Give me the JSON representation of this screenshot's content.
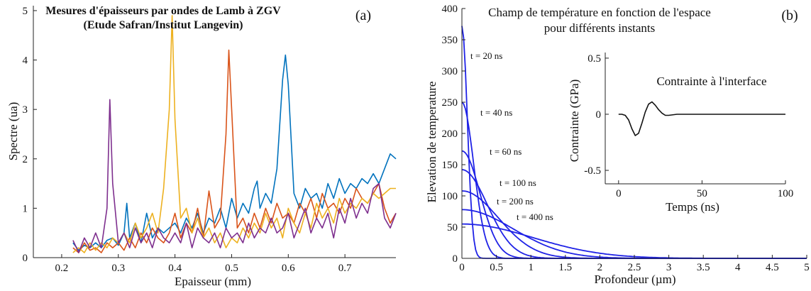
{
  "chart_data": [
    {
      "type": "line",
      "panel_label": "(a)",
      "title": "Mesures d'épaisseurs par ondes de Lamb à ZGV",
      "subtitle": "(Etude Safran/Institut Langevin)",
      "xlabel": "Epaisseur (mm)",
      "ylabel": "Spectre (ua)",
      "xlim": [
        0.15,
        0.79
      ],
      "ylim": [
        0,
        5.1
      ],
      "xticks": [
        "0.2",
        "0.3",
        "0.4",
        "0.5",
        "0.6",
        "0.7"
      ],
      "yticks": [
        "0",
        "1",
        "2",
        "3",
        "4",
        "5"
      ],
      "series": [
        {
          "color": "#0072BD",
          "x": [
            0.22,
            0.23,
            0.24,
            0.25,
            0.26,
            0.27,
            0.28,
            0.29,
            0.3,
            0.31,
            0.315,
            0.32,
            0.33,
            0.34,
            0.35,
            0.36,
            0.37,
            0.38,
            0.39,
            0.4,
            0.41,
            0.42,
            0.43,
            0.44,
            0.45,
            0.46,
            0.47,
            0.48,
            0.49,
            0.5,
            0.51,
            0.52,
            0.53,
            0.54,
            0.545,
            0.55,
            0.56,
            0.57,
            0.58,
            0.59,
            0.595,
            0.6,
            0.61,
            0.62,
            0.63,
            0.64,
            0.65,
            0.66,
            0.67,
            0.68,
            0.69,
            0.7,
            0.71,
            0.72,
            0.73,
            0.74,
            0.75,
            0.76,
            0.77,
            0.78,
            0.79
          ],
          "y": [
            0.3,
            0.15,
            0.25,
            0.2,
            0.3,
            0.2,
            0.35,
            0.4,
            0.25,
            0.5,
            1.1,
            0.4,
            0.7,
            0.3,
            0.9,
            0.4,
            0.6,
            0.5,
            0.6,
            0.7,
            0.5,
            0.8,
            0.6,
            0.9,
            0.5,
            0.8,
            0.7,
            1.0,
            0.6,
            1.2,
            0.8,
            1.1,
            0.9,
            1.4,
            1.55,
            1.0,
            1.3,
            1.1,
            1.8,
            3.6,
            4.1,
            3.5,
            1.3,
            1.0,
            1.4,
            1.2,
            1.3,
            1.0,
            1.5,
            1.2,
            1.6,
            1.3,
            1.5,
            1.4,
            1.6,
            1.5,
            1.7,
            1.5,
            1.8,
            2.1,
            2.0
          ]
        },
        {
          "color": "#D95319",
          "x": [
            0.22,
            0.23,
            0.24,
            0.25,
            0.26,
            0.27,
            0.28,
            0.29,
            0.3,
            0.31,
            0.32,
            0.33,
            0.34,
            0.35,
            0.36,
            0.37,
            0.38,
            0.39,
            0.4,
            0.41,
            0.42,
            0.43,
            0.44,
            0.45,
            0.46,
            0.47,
            0.48,
            0.49,
            0.495,
            0.5,
            0.51,
            0.52,
            0.53,
            0.54,
            0.55,
            0.56,
            0.57,
            0.58,
            0.59,
            0.6,
            0.61,
            0.62,
            0.63,
            0.64,
            0.65,
            0.66,
            0.67,
            0.68,
            0.69,
            0.7,
            0.71,
            0.72,
            0.73,
            0.74,
            0.75,
            0.76,
            0.77,
            0.78,
            0.79
          ],
          "y": [
            0.2,
            0.1,
            0.3,
            0.15,
            0.2,
            0.1,
            0.3,
            0.2,
            0.3,
            0.15,
            0.4,
            0.2,
            0.5,
            0.3,
            0.6,
            0.4,
            0.3,
            0.5,
            0.9,
            0.4,
            0.7,
            0.5,
            1.0,
            0.4,
            1.35,
            0.6,
            0.8,
            2.5,
            4.2,
            3.0,
            0.6,
            0.8,
            0.5,
            0.9,
            0.6,
            1.0,
            0.7,
            1.1,
            0.8,
            0.9,
            0.7,
            1.1,
            0.9,
            1.2,
            0.8,
            1.3,
            1.0,
            1.1,
            0.9,
            1.2,
            1.0,
            1.4,
            1.2,
            1.1,
            1.3,
            1.5,
            1.0,
            0.7,
            0.9
          ]
        },
        {
          "color": "#EDB120",
          "x": [
            0.22,
            0.23,
            0.24,
            0.25,
            0.26,
            0.27,
            0.28,
            0.29,
            0.3,
            0.31,
            0.32,
            0.33,
            0.34,
            0.35,
            0.36,
            0.37,
            0.38,
            0.39,
            0.395,
            0.4,
            0.41,
            0.42,
            0.43,
            0.44,
            0.45,
            0.46,
            0.47,
            0.48,
            0.49,
            0.5,
            0.51,
            0.52,
            0.53,
            0.54,
            0.55,
            0.56,
            0.57,
            0.58,
            0.59,
            0.6,
            0.61,
            0.62,
            0.63,
            0.64,
            0.65,
            0.66,
            0.67,
            0.68,
            0.69,
            0.7,
            0.71,
            0.72,
            0.73,
            0.74,
            0.75,
            0.76,
            0.77,
            0.78,
            0.79
          ],
          "y": [
            0.1,
            0.2,
            0.1,
            0.3,
            0.15,
            0.3,
            0.2,
            0.4,
            0.3,
            0.5,
            0.3,
            0.7,
            0.4,
            0.6,
            0.9,
            0.5,
            1.4,
            3.0,
            4.9,
            2.8,
            0.8,
            1.0,
            0.5,
            0.8,
            0.4,
            0.6,
            0.3,
            0.5,
            0.2,
            0.4,
            0.3,
            0.6,
            0.4,
            0.7,
            0.5,
            0.9,
            0.6,
            0.8,
            0.4,
            1.0,
            0.7,
            0.5,
            0.9,
            0.6,
            1.1,
            0.8,
            1.0,
            0.7,
            1.2,
            0.9,
            1.1,
            1.0,
            1.2,
            1.1,
            1.3,
            1.2,
            1.3,
            1.4,
            1.4
          ]
        },
        {
          "color": "#7E2F8E",
          "x": [
            0.22,
            0.23,
            0.24,
            0.25,
            0.26,
            0.27,
            0.28,
            0.285,
            0.29,
            0.3,
            0.31,
            0.32,
            0.33,
            0.34,
            0.35,
            0.36,
            0.37,
            0.38,
            0.39,
            0.4,
            0.41,
            0.42,
            0.43,
            0.44,
            0.45,
            0.46,
            0.47,
            0.48,
            0.49,
            0.5,
            0.51,
            0.52,
            0.53,
            0.54,
            0.55,
            0.56,
            0.57,
            0.58,
            0.59,
            0.6,
            0.61,
            0.62,
            0.63,
            0.64,
            0.65,
            0.66,
            0.67,
            0.68,
            0.69,
            0.7,
            0.71,
            0.72,
            0.73,
            0.74,
            0.75,
            0.76,
            0.77,
            0.78,
            0.79
          ],
          "y": [
            0.35,
            0.1,
            0.4,
            0.2,
            0.5,
            0.2,
            1.0,
            3.2,
            1.5,
            0.3,
            0.5,
            0.2,
            0.6,
            0.3,
            0.5,
            0.2,
            0.6,
            0.4,
            0.3,
            0.5,
            0.3,
            0.7,
            0.2,
            0.6,
            0.4,
            0.3,
            0.5,
            0.2,
            0.6,
            0.4,
            0.5,
            0.3,
            0.7,
            0.4,
            0.6,
            0.5,
            0.8,
            0.5,
            0.6,
            0.9,
            0.4,
            0.7,
            1.0,
            0.5,
            0.8,
            0.6,
            0.9,
            0.4,
            1.0,
            0.7,
            1.2,
            0.8,
            1.1,
            0.9,
            1.4,
            1.5,
            0.8,
            0.6,
            0.9
          ]
        }
      ]
    },
    {
      "type": "line",
      "panel_label": "(b)",
      "title": "Champ de température en fonction de l'espace",
      "subtitle": "pour différents instants",
      "xlabel": "Profondeur (µm)",
      "ylabel": "Elevation de temperature",
      "xlim": [
        0,
        5
      ],
      "ylim": [
        0,
        400
      ],
      "xticks": [
        "0",
        "0.5",
        "1",
        "1.5",
        "2",
        "2.5",
        "3",
        "3.5",
        "4",
        "4.5",
        "5"
      ],
      "yticks": [
        "0",
        "50",
        "100",
        "150",
        "200",
        "250",
        "300",
        "350",
        "400"
      ],
      "line_color": "#1F22E6",
      "series": [
        {
          "label": "t = 20 ns",
          "peak": 372,
          "decay_um": 0.11
        },
        {
          "label": "t = 40 ns",
          "peak": 250,
          "decay_um": 0.24
        },
        {
          "label": "t = 60 ns",
          "peak": 172,
          "decay_um": 0.37
        },
        {
          "label": "t = 100 ns",
          "peak": 142,
          "decay_um": 0.52
        },
        {
          "label": "t = 200 ns",
          "peak": 108,
          "decay_um": 0.74
        },
        {
          "label": "t = 400 ns",
          "peak": 78,
          "decay_um": 1.05
        },
        {
          "label": "",
          "peak": 55,
          "decay_um": 1.45
        }
      ],
      "inset": {
        "title": "Contrainte à l'interface",
        "xlabel": "Temps (ns)",
        "ylabel": "Contrainte (GPa)",
        "xlim": [
          -8,
          100
        ],
        "ylim": [
          -0.62,
          0.55
        ],
        "xticks": [
          "0",
          "50",
          "100"
        ],
        "yticks": [
          "-0.5",
          "0",
          "0.5"
        ],
        "line_color": "#111111",
        "x": [
          0,
          2,
          4,
          6,
          8,
          10,
          12,
          14,
          16,
          18,
          20,
          22,
          24,
          26,
          28,
          30,
          35,
          40,
          50,
          60,
          70,
          80,
          90,
          100
        ],
        "y": [
          0,
          0,
          -0.01,
          -0.05,
          -0.13,
          -0.19,
          -0.17,
          -0.08,
          0.02,
          0.09,
          0.11,
          0.08,
          0.04,
          0.01,
          -0.01,
          -0.01,
          0,
          0,
          0,
          0,
          0,
          0,
          0,
          0
        ]
      }
    }
  ]
}
